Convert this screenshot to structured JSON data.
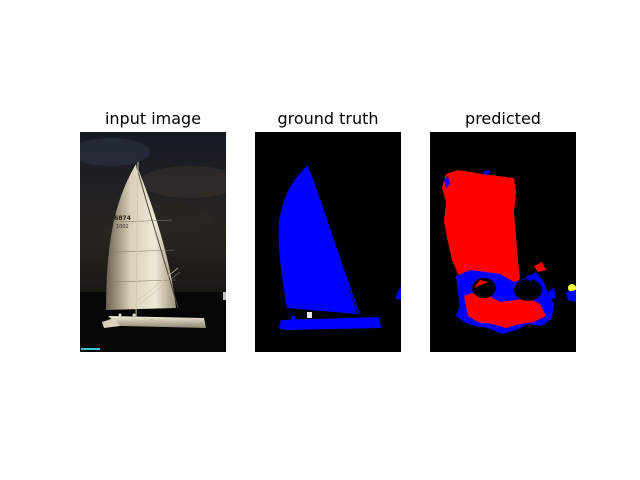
{
  "titles": {
    "input": "input image",
    "ground_truth": "ground truth",
    "predicted": "predicted"
  },
  "input_image": {
    "sail_number_main": "56874",
    "sail_number_sub": "1002"
  },
  "colors": {
    "background": "#ffffff",
    "panel_bg": "#000000",
    "class_boat": "#0000ff",
    "class_red": "#ff0000",
    "class_yellow": "#ffff33"
  },
  "icons": {
    "boat": "sailboat-photo",
    "mask": "segmentation-mask"
  }
}
